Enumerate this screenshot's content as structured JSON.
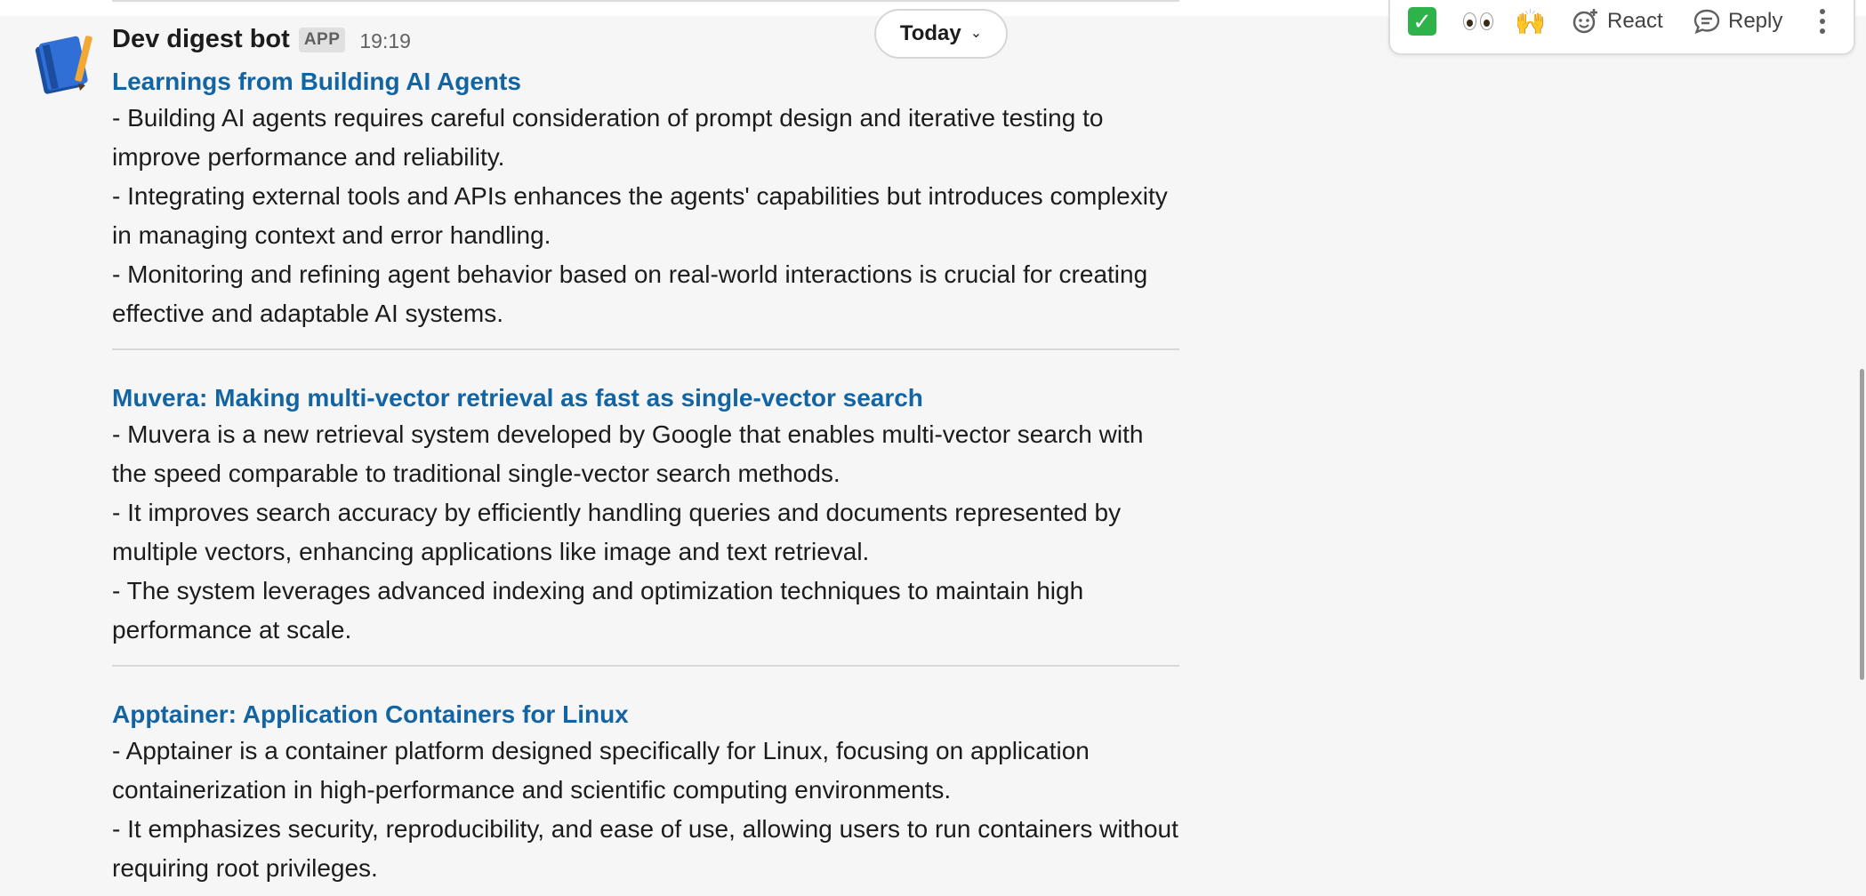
{
  "message": {
    "author": "Dev digest bot",
    "badge": "APP",
    "time": "19:19",
    "avatar_icon": "notebook-icon"
  },
  "date_divider": {
    "label": "Today",
    "chevron": "⌄"
  },
  "toolbar": {
    "check_emoji": "✓",
    "eyes_emoji": "eyes",
    "raised_hands_emoji": "🙌",
    "react_label": "React",
    "reply_label": "Reply",
    "more_icon": "more-vertical-icon"
  },
  "articles": [
    {
      "title": "Learnings from Building AI Agents",
      "bullets": [
        "- Building AI agents requires careful consideration of prompt design and iterative testing to improve performance and reliability.",
        "- Integrating external tools and APIs enhances the agents' capabilities but introduces complexity in managing context and error handling.",
        "- Monitoring and refining agent behavior based on real-world interactions is crucial for creating effective and adaptable AI systems."
      ]
    },
    {
      "title": "Muvera: Making multi-vector retrieval as fast as single-vector search",
      "bullets": [
        "- Muvera is a new retrieval system developed by Google that enables multi-vector search with the speed comparable to traditional single-vector search methods.",
        "- It improves search accuracy by efficiently handling queries and documents represented by multiple vectors, enhancing applications like image and text retrieval.",
        "- The system leverages advanced indexing and optimization techniques to maintain high performance at scale."
      ]
    },
    {
      "title": "Apptainer: Application Containers for Linux",
      "bullets": [
        "- Apptainer is a container platform designed specifically for Linux, focusing on application containerization in high-performance and scientific computing environments.",
        "- It emphasizes security, reproducibility, and ease of use, allowing users to run containers without requiring root privileges."
      ]
    }
  ],
  "colors": {
    "link": "#1264a3",
    "text": "#1d1c1d",
    "muted": "#616061",
    "background": "#f6f6f6"
  }
}
